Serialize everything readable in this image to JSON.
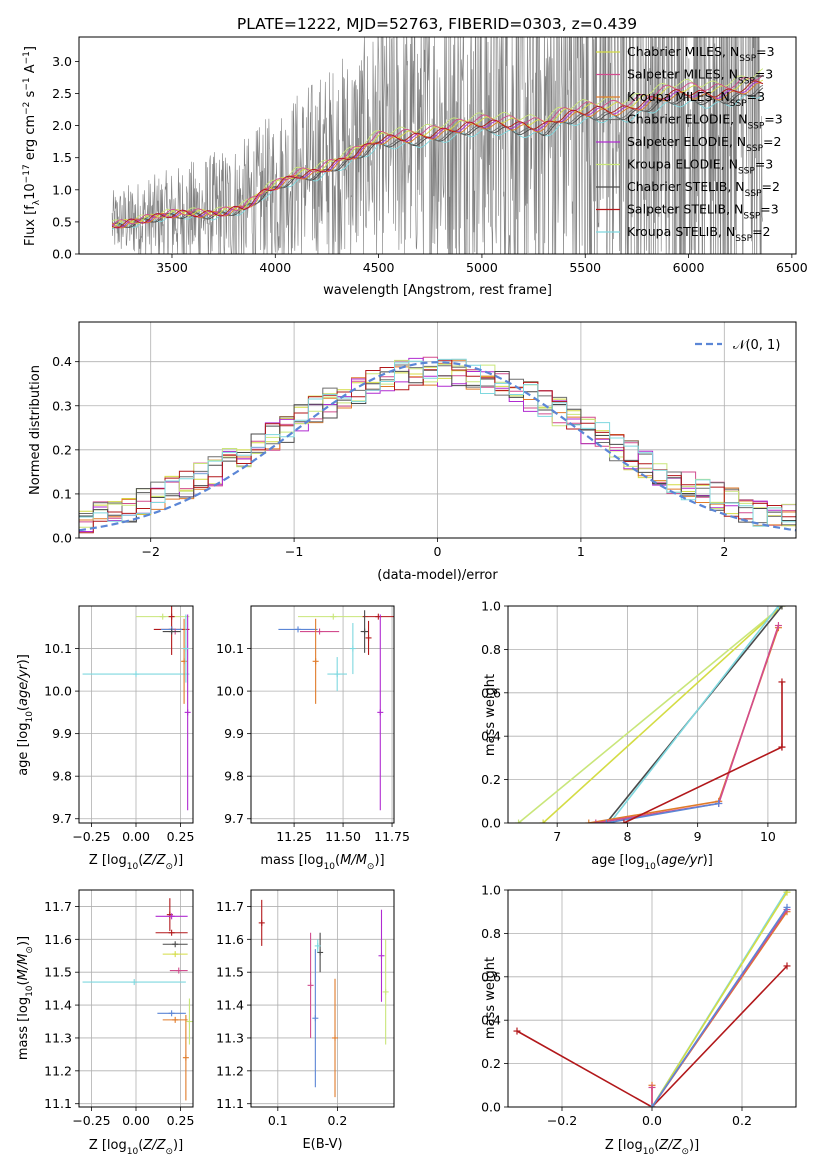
{
  "figure_title": "PLATE=1222, MJD=52763, FIBERID=0303, z=0.439",
  "colors": {
    "chabrier_miles": "#d4dc44",
    "salpeter_miles": "#d24c8e",
    "kroupa_miles": "#e07b2a",
    "chabrier_elodie": "#6e6e6e",
    "salpeter_elodie": "#b02bd1",
    "kroupa_elodie": "#c9e67a",
    "chabrier_stelib": "#4a4a4a",
    "salpeter_stelib": "#b2181b",
    "kroupa_stelib": "#7fd8df",
    "data": "#7f7f7f",
    "normal": "#5b86d6",
    "grid": "#b0b0b0"
  },
  "chart_data": [
    {
      "id": "spectrum",
      "type": "line",
      "xlabel": "wavelength [Angstrom, rest frame]",
      "ylabel": "Flux [f",
      "xlim": [
        3050,
        6520
      ],
      "ylim": [
        0,
        3.38
      ],
      "xticks": [
        "3500",
        "4000",
        "4500",
        "5000",
        "5500",
        "6000",
        "6500"
      ],
      "yticks": [
        "0.0",
        "0.5",
        "1.0",
        "1.5",
        "2.0",
        "2.5",
        "3.0"
      ],
      "legend": [
        {
          "imf": "Chabrier",
          "lib": "MILES",
          "n": "3",
          "color_key": "chabrier_miles"
        },
        {
          "imf": "Salpeter",
          "lib": "MILES",
          "n": "3",
          "color_key": "salpeter_miles"
        },
        {
          "imf": "Kroupa",
          "lib": "MILES",
          "n": "3",
          "color_key": "kroupa_miles"
        },
        {
          "imf": "Chabrier",
          "lib": "ELODIE",
          "n": "3",
          "color_key": "chabrier_elodie"
        },
        {
          "imf": "Salpeter",
          "lib": "ELODIE",
          "n": "2",
          "color_key": "salpeter_elodie"
        },
        {
          "imf": "Kroupa",
          "lib": "ELODIE",
          "n": "3",
          "color_key": "kroupa_elodie"
        },
        {
          "imf": "Chabrier",
          "lib": "STELIB",
          "n": "2",
          "color_key": "chabrier_stelib"
        },
        {
          "imf": "Salpeter",
          "lib": "STELIB",
          "n": "3",
          "color_key": "salpeter_stelib"
        },
        {
          "imf": "Kroupa",
          "lib": "STELIB",
          "n": "2",
          "color_key": "kroupa_stelib"
        }
      ],
      "model_x": [
        3210,
        3300,
        3400,
        3500,
        3600,
        3700,
        3800,
        3850,
        3900,
        3950,
        4000,
        4100,
        4200,
        4300,
        4400,
        4500,
        4600,
        4700,
        4800,
        4900,
        5000,
        5100,
        5200,
        5300,
        5400,
        5500,
        5600,
        5700,
        5800,
        5900,
        6000,
        6100,
        6200,
        6300,
        6360
      ],
      "model_y": [
        0.48,
        0.53,
        0.55,
        0.58,
        0.62,
        0.66,
        0.72,
        0.74,
        0.82,
        0.95,
        1.02,
        1.22,
        1.32,
        1.45,
        1.56,
        1.75,
        1.82,
        1.88,
        1.92,
        1.95,
        2.0,
        2.05,
        2.05,
        2.0,
        2.12,
        2.2,
        2.28,
        2.3,
        2.38,
        2.45,
        2.5,
        2.52,
        2.56,
        2.62,
        2.65
      ],
      "series_offsets": {
        "chabrier_miles": 0.05,
        "salpeter_miles": 0.08,
        "kroupa_miles": -0.04,
        "chabrier_elodie": -0.08,
        "salpeter_elodie": -0.02,
        "kroupa_elodie": 0.12,
        "chabrier_stelib": -0.1,
        "salpeter_stelib": 0.0,
        "kroupa_stelib": -0.14
      }
    },
    {
      "id": "residual_hist",
      "type": "line",
      "xlabel": "(data-model)/error",
      "ylabel": "Normed distribution",
      "xlim": [
        -2.5,
        2.5
      ],
      "ylim": [
        0,
        0.49
      ],
      "xticks": [
        "−2",
        "−1",
        "0",
        "1",
        "2"
      ],
      "xtick_values": [
        -2,
        -1,
        0,
        1,
        2
      ],
      "yticks": [
        "0.0",
        "0.1",
        "0.2",
        "0.3",
        "0.4"
      ],
      "ytick_values": [
        0,
        0.1,
        0.2,
        0.3,
        0.4
      ],
      "legend": "𝒩(0, 1)",
      "bin_width": 0.1
    },
    {
      "id": "age_vs_Z",
      "type": "scatter",
      "xlabel": "Z [log",
      "ylabel": "age  [log",
      "xlim": [
        -0.32,
        0.32
      ],
      "ylim": [
        9.69,
        10.2
      ],
      "xticks": [
        "−0.25",
        "0.00",
        "0.25"
      ],
      "xtick_values": [
        -0.25,
        0.0,
        0.25
      ],
      "yticks": [
        "9.7",
        "9.8",
        "9.9",
        "10.0",
        "10.1"
      ],
      "ytick_values": [
        9.7,
        9.8,
        9.9,
        10.0,
        10.1
      ],
      "points": [
        {
          "c": "kroupa_elodie",
          "x": 0.15,
          "xe": 0.15,
          "y": 10.175,
          "ye": 0.0
        },
        {
          "c": "salpeter_stelib",
          "x": 0.2,
          "xe": 0.0,
          "y": 10.175,
          "ye": 0.0
        },
        {
          "c": "salpeter_stelib",
          "x": 0.2,
          "xe": 0.1,
          "y": 10.145,
          "ye": 0.06
        },
        {
          "c": "normal",
          "x": 0.2,
          "xe": 0.06,
          "y": 10.145,
          "ye": 0.0
        },
        {
          "c": "salpeter_miles",
          "x": 0.22,
          "xe": 0.0,
          "y": 10.14,
          "ye": 0.0
        },
        {
          "c": "chabrier_stelib",
          "x": 0.2,
          "xe": 0.05,
          "y": 10.14,
          "ye": 0.0
        },
        {
          "c": "kroupa_stelib",
          "x": 0.0,
          "xe": 0.3,
          "y": 10.04,
          "ye": 0.0
        },
        {
          "c": "kroupa_miles",
          "x": 0.27,
          "xe": 0.01,
          "y": 10.07,
          "ye": 0.1
        },
        {
          "c": "salpeter_elodie",
          "x": 0.29,
          "xe": 0.0,
          "y": 9.95,
          "ye": 0.23
        },
        {
          "c": "kroupa_stelib",
          "x": 0.28,
          "xe": 0.01,
          "y": 10.1,
          "ye": 0.08
        }
      ]
    },
    {
      "id": "age_vs_mass",
      "type": "scatter",
      "xlabel": "mass [log",
      "ylabel": "",
      "xlim": [
        11.03,
        11.76
      ],
      "ylim": [
        9.69,
        10.2
      ],
      "xticks": [
        "11.25",
        "11.50",
        "11.75"
      ],
      "xtick_values": [
        11.25,
        11.5,
        11.75
      ],
      "yticks": [
        "9.7",
        "9.8",
        "9.9",
        "10.0",
        "10.1"
      ],
      "ytick_values": [
        9.7,
        9.8,
        9.9,
        10.0,
        10.1
      ],
      "points": [
        {
          "c": "kroupa_elodie",
          "x": 11.45,
          "xe": 0.18,
          "y": 10.175,
          "ye": 0.0
        },
        {
          "c": "salpeter_stelib",
          "x": 11.68,
          "xe": 0.08,
          "y": 10.175,
          "ye": 0.0
        },
        {
          "c": "chabrier_stelib",
          "x": 11.61,
          "xe": 0.02,
          "y": 10.14,
          "ye": 0.05
        },
        {
          "c": "salpeter_stelib",
          "x": 11.63,
          "xe": 0.0,
          "y": 10.125,
          "ye": 0.04
        },
        {
          "c": "normal",
          "x": 11.27,
          "xe": 0.1,
          "y": 10.145,
          "ye": 0.0
        },
        {
          "c": "salpeter_miles",
          "x": 11.38,
          "xe": 0.1,
          "y": 10.14,
          "ye": 0.0
        },
        {
          "c": "kroupa_miles",
          "x": 11.36,
          "xe": 0.0,
          "y": 10.07,
          "ye": 0.1
        },
        {
          "c": "kroupa_stelib",
          "x": 11.47,
          "xe": 0.05,
          "y": 10.04,
          "ye": 0.04
        },
        {
          "c": "kroupa_stelib",
          "x": 11.55,
          "xe": 0.0,
          "y": 10.1,
          "ye": 0.06
        },
        {
          "c": "salpeter_elodie",
          "x": 11.69,
          "xe": 0.0,
          "y": 9.95,
          "ye": 0.23
        }
      ]
    },
    {
      "id": "massweight_vs_age",
      "type": "line",
      "xlabel": "age  [log",
      "ylabel": "mass weight",
      "xlim": [
        6.3,
        10.4
      ],
      "ylim": [
        0,
        1.0
      ],
      "xticks": [
        "7",
        "8",
        "9",
        "10"
      ],
      "xtick_values": [
        7,
        8,
        9,
        10
      ],
      "yticks": [
        "0.0",
        "0.2",
        "0.4",
        "0.6",
        "0.8",
        "1.0"
      ],
      "ytick_values": [
        0,
        0.2,
        0.4,
        0.6,
        0.8,
        1.0
      ],
      "lines": [
        {
          "c": "kroupa_elodie",
          "x": [
            6.45,
            10.2
          ],
          "y": [
            0.0,
            1.0
          ]
        },
        {
          "c": "chabrier_miles",
          "x": [
            6.8,
            10.2
          ],
          "y": [
            0.0,
            1.0
          ]
        },
        {
          "c": "chabrier_stelib",
          "x": [
            7.7,
            10.2
          ],
          "y": [
            0.0,
            1.0
          ]
        },
        {
          "c": "kroupa_stelib",
          "x": [
            7.75,
            10.15
          ],
          "y": [
            0.0,
            1.0
          ]
        },
        {
          "c": "kroupa_miles",
          "x": [
            7.45,
            9.3,
            10.15
          ],
          "y": [
            0.0,
            0.1,
            0.9
          ]
        },
        {
          "c": "salpeter_miles",
          "x": [
            7.55,
            9.3,
            10.15
          ],
          "y": [
            0.0,
            0.09,
            0.91
          ]
        },
        {
          "c": "normal",
          "x": [
            7.7,
            9.3
          ],
          "y": [
            0.0,
            0.09
          ]
        },
        {
          "c": "salpeter_stelib",
          "x": [
            7.95,
            10.2
          ],
          "y": [
            0.0,
            0.35
          ]
        },
        {
          "c": "salpeter_stelib",
          "x": [
            10.2,
            10.2
          ],
          "y": [
            0.35,
            0.65
          ]
        }
      ]
    },
    {
      "id": "mass_vs_Z",
      "type": "scatter",
      "xlabel": "Z [log",
      "ylabel": "mass [log",
      "xlim": [
        -0.32,
        0.32
      ],
      "ylim": [
        11.09,
        11.75
      ],
      "xticks": [
        "−0.25",
        "0.00",
        "0.25"
      ],
      "xtick_values": [
        -0.25,
        0.0,
        0.25
      ],
      "yticks": [
        "11.1",
        "11.2",
        "11.3",
        "11.4",
        "11.5",
        "11.6",
        "11.7"
      ],
      "ytick_values": [
        11.1,
        11.2,
        11.3,
        11.4,
        11.5,
        11.6,
        11.7
      ],
      "points": [
        {
          "c": "salpeter_stelib",
          "x": 0.19,
          "xe": 0.0,
          "y": 11.675,
          "ye": 0.05
        },
        {
          "c": "salpeter_elodie",
          "x": 0.2,
          "xe": 0.09,
          "y": 11.67,
          "ye": 0.0
        },
        {
          "c": "salpeter_stelib",
          "x": 0.2,
          "xe": 0.09,
          "y": 11.62,
          "ye": 0.0
        },
        {
          "c": "chabrier_stelib",
          "x": 0.22,
          "xe": 0.07,
          "y": 11.585,
          "ye": 0.0
        },
        {
          "c": "chabrier_miles",
          "x": 0.22,
          "xe": 0.07,
          "y": 11.555,
          "ye": 0.0
        },
        {
          "c": "salpeter_miles",
          "x": 0.24,
          "xe": 0.05,
          "y": 11.505,
          "ye": 0.0
        },
        {
          "c": "kroupa_stelib",
          "x": -0.01,
          "xe": 0.29,
          "y": 11.47,
          "ye": 0.0
        },
        {
          "c": "normal",
          "x": 0.2,
          "xe": 0.08,
          "y": 11.375,
          "ye": 0.0
        },
        {
          "c": "kroupa_miles",
          "x": 0.22,
          "xe": 0.07,
          "y": 11.355,
          "ye": 0.0
        },
        {
          "c": "kroupa_miles",
          "x": 0.28,
          "xe": 0.0,
          "y": 11.24,
          "ye": 0.13
        },
        {
          "c": "kroupa_elodie",
          "x": 0.3,
          "xe": 0.0,
          "y": 11.35,
          "ye": 0.07
        }
      ]
    },
    {
      "id": "mass_vs_ebv",
      "type": "scatter",
      "xlabel": "E(B-V)",
      "ylabel": "",
      "xlim": [
        0.055,
        0.295
      ],
      "ylim": [
        11.09,
        11.75
      ],
      "xticks": [
        "0.1",
        "0.2"
      ],
      "xtick_values": [
        0.1,
        0.2
      ],
      "yticks": [
        "11.1",
        "11.2",
        "11.3",
        "11.4",
        "11.5",
        "11.6",
        "11.7"
      ],
      "ytick_values": [
        11.1,
        11.2,
        11.3,
        11.4,
        11.5,
        11.6,
        11.7
      ],
      "points": [
        {
          "c": "salpeter_stelib",
          "x": 0.073,
          "xe": 0.0,
          "y": 11.65,
          "ye": 0.07
        },
        {
          "c": "salpeter_miles",
          "x": 0.155,
          "xe": 0.0,
          "y": 11.46,
          "ye": 0.16
        },
        {
          "c": "normal",
          "x": 0.163,
          "xe": 0.0,
          "y": 11.36,
          "ye": 0.21
        },
        {
          "c": "chabrier_stelib",
          "x": 0.171,
          "xe": 0.0,
          "y": 11.56,
          "ye": 0.06
        },
        {
          "c": "kroupa_stelib",
          "x": 0.167,
          "xe": 0.0,
          "y": 11.58,
          "ye": 0.02
        },
        {
          "c": "kroupa_miles",
          "x": 0.196,
          "xe": 0.0,
          "y": 11.3,
          "ye": 0.18
        },
        {
          "c": "salpeter_elodie",
          "x": 0.274,
          "xe": 0.0,
          "y": 11.55,
          "ye": 0.14
        },
        {
          "c": "kroupa_elodie",
          "x": 0.281,
          "xe": 0.0,
          "y": 11.44,
          "ye": 0.16
        }
      ]
    },
    {
      "id": "massweight_vs_Z",
      "type": "line",
      "xlabel": "Z [log",
      "ylabel": "mass weight",
      "xlim": [
        -0.32,
        0.32
      ],
      "ylim": [
        0,
        1.0
      ],
      "xticks": [
        "−0.2",
        "0.0",
        "0.2"
      ],
      "xtick_values": [
        -0.2,
        0.0,
        0.2
      ],
      "yticks": [
        "0.0",
        "0.2",
        "0.4",
        "0.6",
        "0.8",
        "1.0"
      ],
      "ytick_values": [
        0,
        0.2,
        0.4,
        0.6,
        0.8,
        1.0
      ],
      "lines": [
        {
          "c": "salpeter_stelib",
          "x": [
            -0.3,
            0.0,
            0.3
          ],
          "y": [
            0.35,
            0.0,
            0.65
          ]
        },
        {
          "c": "kroupa_miles",
          "x": [
            0.0,
            0.0,
            0.3
          ],
          "y": [
            0.1,
            0.0,
            0.9
          ]
        },
        {
          "c": "salpeter_miles",
          "x": [
            0.0,
            0.0,
            0.3
          ],
          "y": [
            0.09,
            0.0,
            0.91
          ]
        },
        {
          "c": "kroupa_stelib",
          "x": [
            0.0,
            0.3
          ],
          "y": [
            0.0,
            1.0
          ]
        },
        {
          "c": "chabrier_miles",
          "x": [
            0.0,
            0.3
          ],
          "y": [
            0.0,
            0.99
          ]
        },
        {
          "c": "normal",
          "x": [
            0.0,
            0.3
          ],
          "y": [
            0.0,
            0.92
          ]
        }
      ]
    }
  ]
}
